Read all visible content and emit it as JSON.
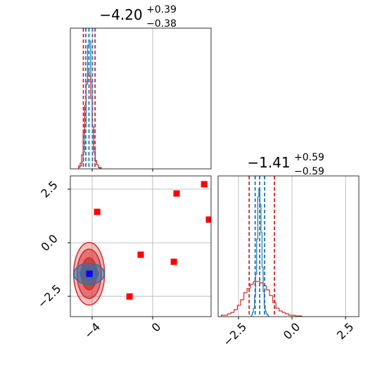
{
  "chart_data": [
    {
      "type": "histogram",
      "title": "−4.20",
      "title_sup": "+0.39",
      "title_sub": "−0.38",
      "xlim": [
        -5.44,
        3.86
      ],
      "xticks": [
        -4,
        0
      ],
      "ylim": [
        0,
        1
      ],
      "series": [
        {
          "color": "#1f77b4",
          "bins": [
            -4.9,
            -4.8,
            -4.7,
            -4.6,
            -4.5,
            -4.4,
            -4.3,
            -4.2,
            -4.1,
            -4.0,
            -3.9,
            -3.8,
            -3.7,
            -3.6,
            -3.5,
            -3.4
          ],
          "counts": [
            0.01,
            0.02,
            0.05,
            0.12,
            0.3,
            0.6,
            0.88,
            0.91,
            0.62,
            0.3,
            0.12,
            0.05,
            0.03,
            0.01,
            0.005
          ]
        },
        {
          "color": "#d62728",
          "bins": [
            -4.9,
            -4.8,
            -4.7,
            -4.6,
            -4.5,
            -4.4,
            -4.3,
            -4.2,
            -4.1,
            -4.0,
            -3.9,
            -3.8,
            -3.7,
            -3.6,
            -3.5,
            -3.4
          ],
          "counts": [
            0.02,
            0.04,
            0.1,
            0.25,
            0.45,
            0.62,
            0.69,
            0.66,
            0.5,
            0.3,
            0.14,
            0.06,
            0.03,
            0.01,
            0.01
          ]
        }
      ],
      "vlines": [
        {
          "color": "#d62728",
          "values": [
            -4.58,
            -3.81
          ]
        },
        {
          "color": "#1f77b4",
          "values": [
            -4.42,
            -4.21,
            -3.98
          ]
        }
      ]
    },
    {
      "type": "scatter",
      "xlim": [
        -5.44,
        3.86
      ],
      "xticks": [
        {
          "value": -4,
          "label": "−4"
        },
        0
      ],
      "ylim": [
        -3.45,
        3.12
      ],
      "yticks": [
        {
          "value": -2.5,
          "label": "−2.5"
        },
        {
          "value": 0,
          "label": "0.0"
        },
        2.5
      ],
      "contours": [
        {
          "color": "#d62728",
          "center": [
            -4.2,
            -1.45
          ],
          "levels": [
            {
              "rx": 1.02,
              "ry": 1.46
            },
            {
              "rx": 0.8,
              "ry": 1.15
            },
            {
              "rx": 0.5,
              "ry": 0.75
            }
          ]
        },
        {
          "color": "#1f77b4",
          "center": [
            -4.2,
            -1.45
          ],
          "levels": [
            {
              "rx": 1.0,
              "ry": 0.5
            },
            {
              "rx": 0.6,
              "ry": 0.3
            }
          ]
        }
      ],
      "series": [
        {
          "color": "#ff0000",
          "x": [
            -3.67,
            -0.79,
            1.58,
            3.4,
            3.72,
            1.4,
            -1.53,
            -4.2
          ],
          "y": [
            1.44,
            -0.56,
            2.3,
            2.73,
            1.08,
            -0.89,
            -2.51,
            -1.45
          ]
        },
        {
          "color": "#0000ff",
          "x": [
            -4.18
          ],
          "y": [
            -1.45
          ]
        }
      ]
    },
    {
      "type": "histogram",
      "title": "−1.41",
      "title_sup": "+0.59",
      "title_sub": "−0.59",
      "xlim": [
        -3.45,
        3.12
      ],
      "xticks": [
        {
          "value": -2.5,
          "label": "−2.5"
        },
        {
          "value": 0,
          "label": "0.0"
        },
        2.5
      ],
      "ylim": [
        0,
        1
      ],
      "series": [
        {
          "color": "#1f77b4",
          "bins": [
            -1.9,
            -1.85,
            -1.8,
            -1.75,
            -1.7,
            -1.65,
            -1.6,
            -1.55,
            -1.5,
            -1.45,
            -1.4,
            -1.35,
            -1.3,
            -1.25,
            -1.2,
            -1.15,
            -1.1
          ],
          "counts": [
            0.01,
            0.03,
            0.06,
            0.15,
            0.3,
            0.55,
            0.85,
            0.91,
            0.8,
            0.6,
            0.35,
            0.18,
            0.08,
            0.04,
            0.02,
            0.01
          ]
        },
        {
          "color": "#d62728",
          "bins": [
            -3.3,
            -3.15,
            -3.0,
            -2.85,
            -2.7,
            -2.55,
            -2.4,
            -2.25,
            -2.1,
            -1.95,
            -1.8,
            -1.65,
            -1.5,
            -1.35,
            -1.2,
            -1.05,
            -0.9,
            -0.75,
            -0.6,
            -0.45,
            -0.3,
            -0.15,
            0.0,
            0.15,
            0.3,
            0.45
          ],
          "counts": [
            0.01,
            0.01,
            0.02,
            0.03,
            0.05,
            0.08,
            0.12,
            0.17,
            0.2,
            0.23,
            0.25,
            0.25,
            0.24,
            0.22,
            0.19,
            0.15,
            0.1,
            0.06,
            0.04,
            0.03,
            0.02,
            0.01,
            0.01,
            0.005,
            0.005
          ]
        }
      ],
      "vlines": [
        {
          "color": "#d62728",
          "values": [
            -2.0,
            -0.82
          ]
        },
        {
          "color": "#1f77b4",
          "values": [
            -1.72,
            -1.51,
            -1.28
          ]
        }
      ]
    }
  ]
}
